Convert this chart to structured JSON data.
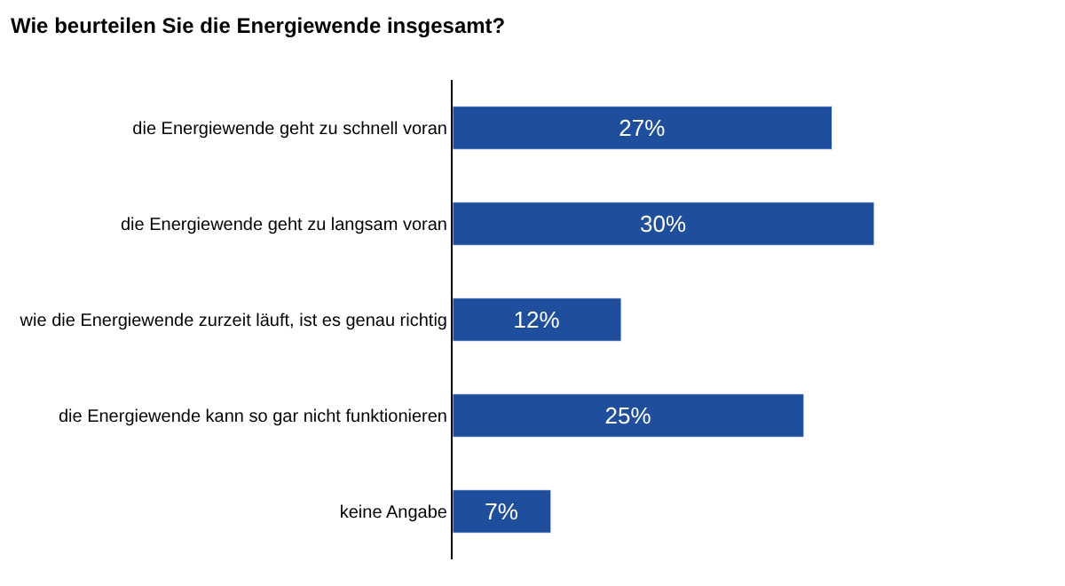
{
  "chart_data": {
    "type": "bar",
    "orientation": "horizontal",
    "title": "Wie beurteilen Sie die Energiewende insgesamt?",
    "categories": [
      "die Energiewende geht zu schnell voran",
      "die Energiewende geht zu langsam voran",
      "wie die Energiewende zurzeit läuft, ist es genau richtig",
      "die Energiewende kann so gar nicht funktionieren",
      "keine Angabe"
    ],
    "values": [
      27,
      30,
      12,
      25,
      7
    ],
    "value_labels": [
      "27%",
      "30%",
      "12%",
      "25%",
      "7%"
    ],
    "color": "#1f4e9c"
  }
}
